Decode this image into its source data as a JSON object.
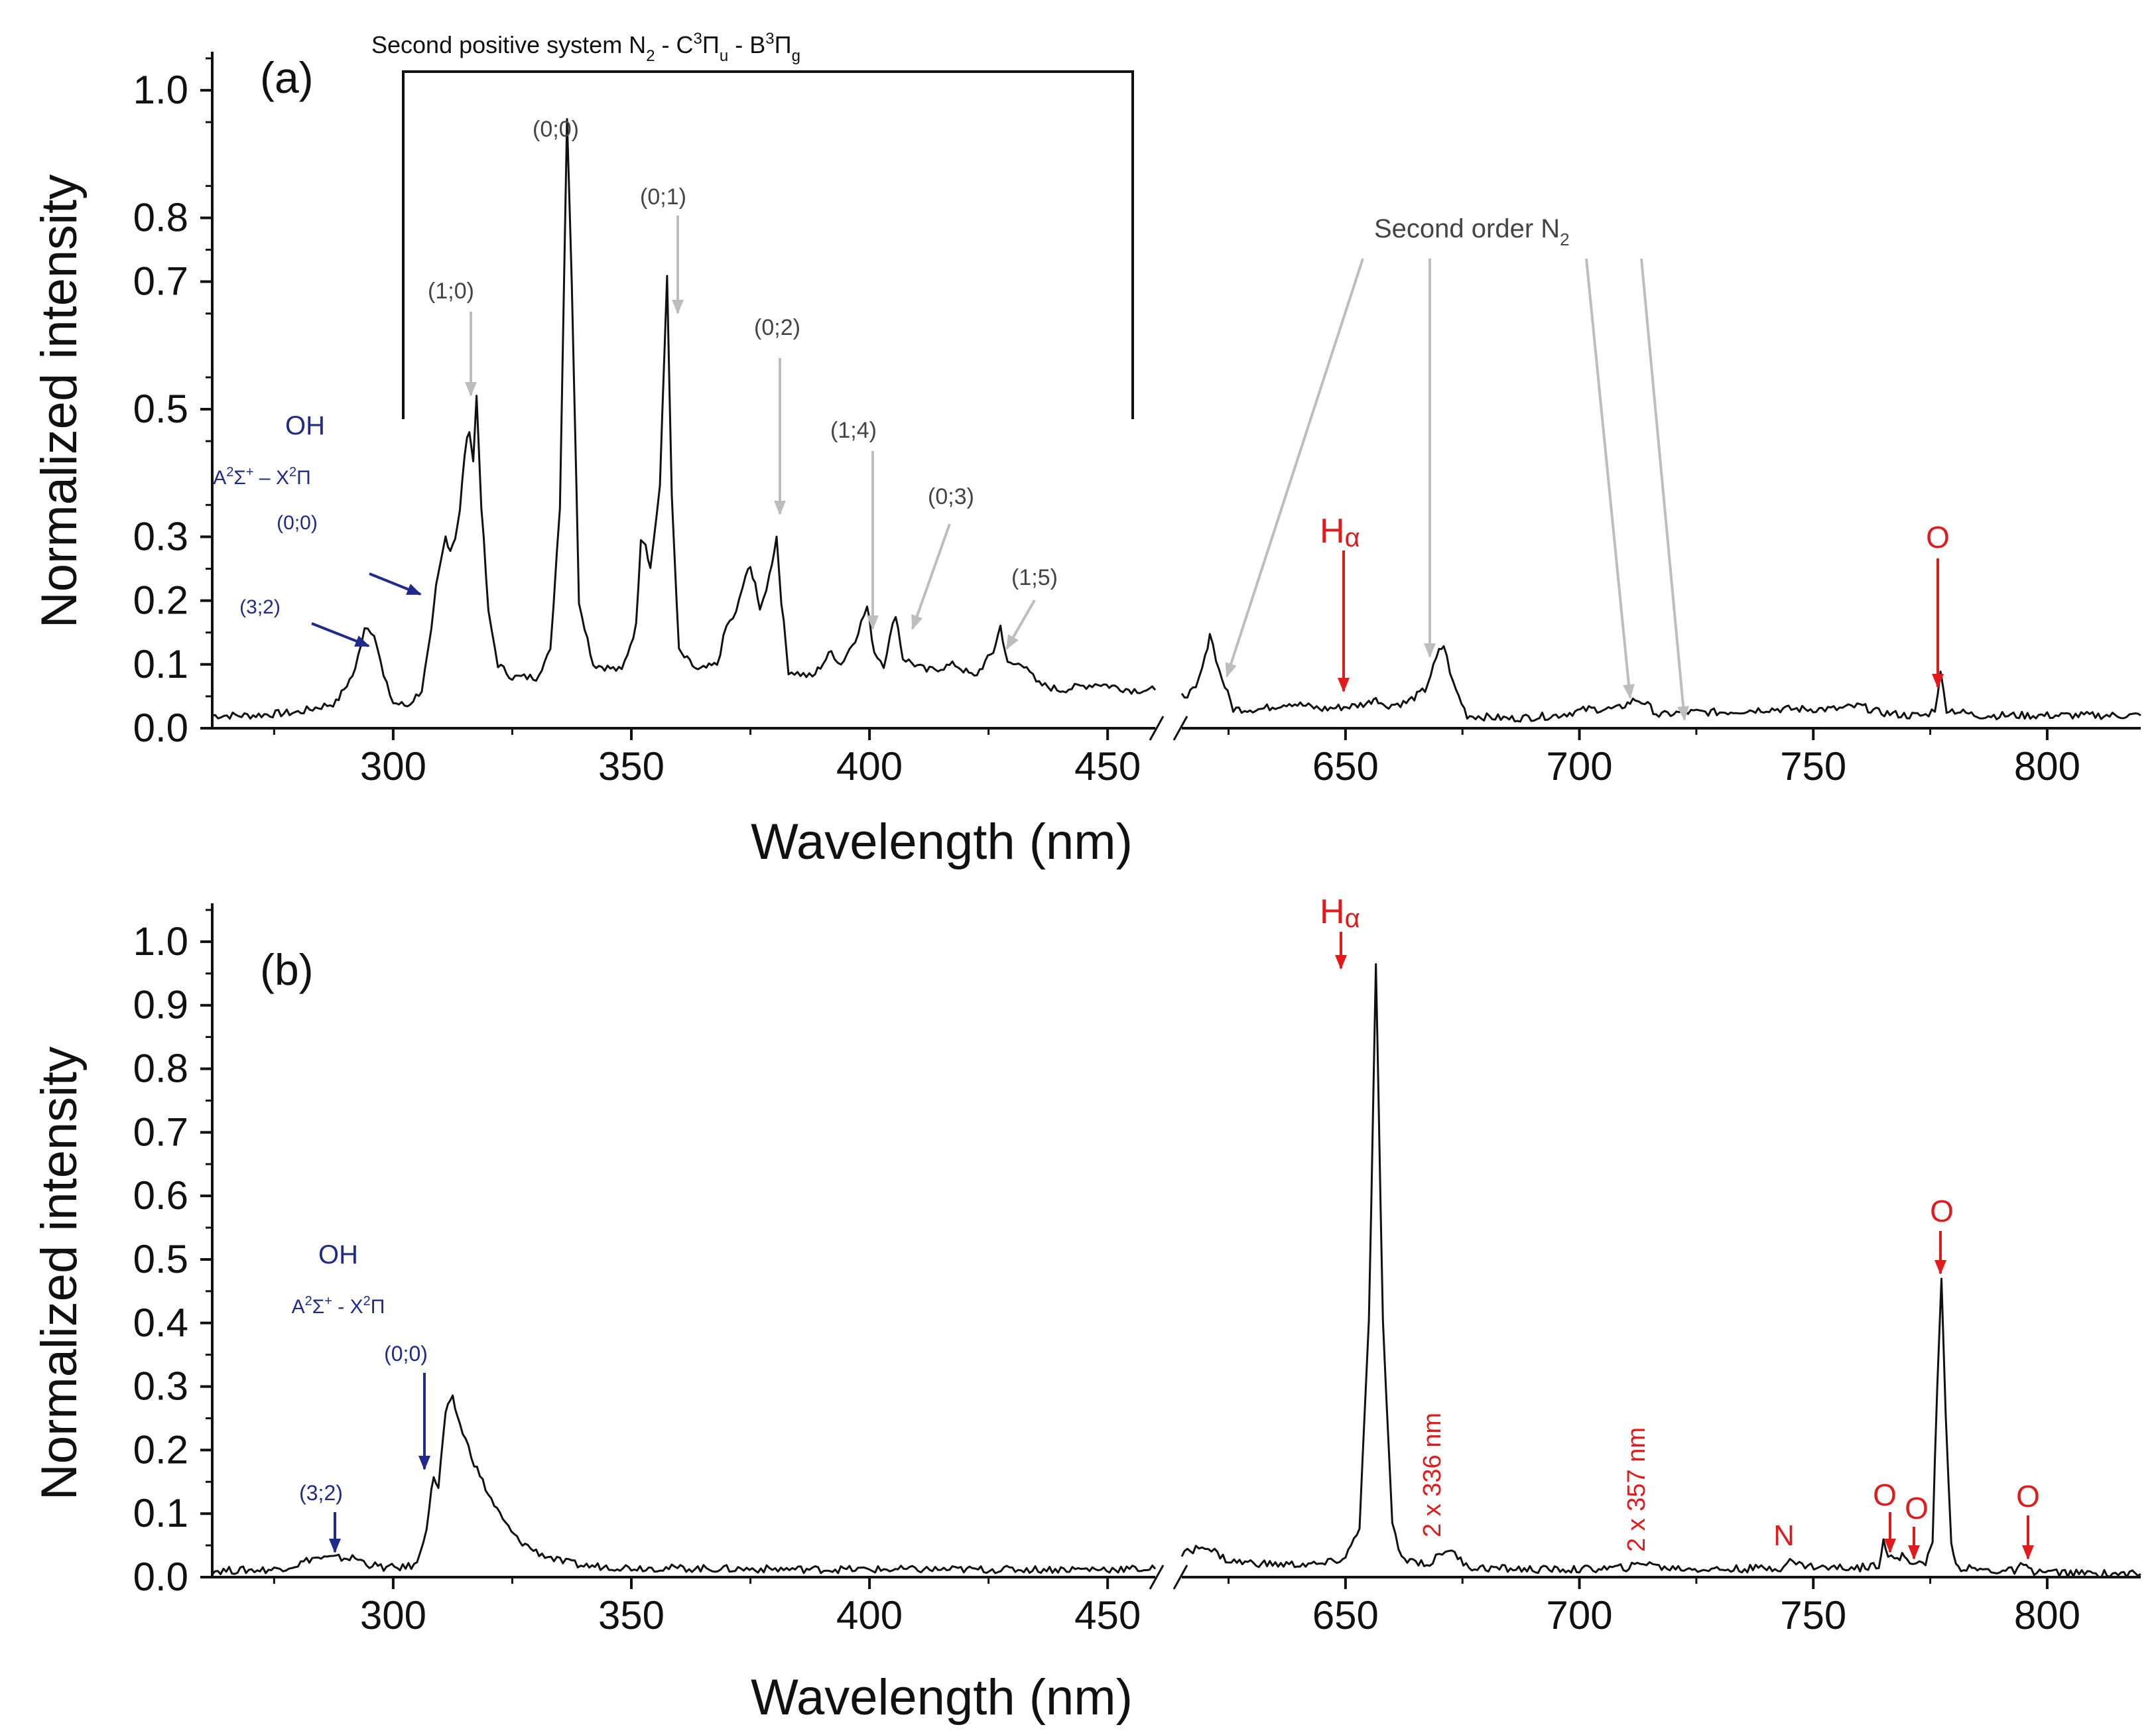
{
  "chart_data": [
    {
      "type": "line",
      "panel_label": "(a)",
      "xlabel": "Wavelength (nm)",
      "ylabel": "Normalized intensity",
      "ylim": [
        0.0,
        1.05
      ],
      "y_ticks": [
        "0.0",
        "0.1",
        "0.2",
        "0.3",
        "0.5",
        "0.7",
        "0.8",
        "1.0"
      ],
      "x_segments": [
        {
          "xlim": [
            262,
            460
          ],
          "ticks": [
            "300",
            "350",
            "400",
            "450"
          ]
        },
        {
          "xlim": [
            615,
            820
          ],
          "ticks": [
            "650",
            "700",
            "750",
            "800"
          ]
        }
      ],
      "x_tick_values": [
        300,
        350,
        400,
        450,
        650,
        700,
        750,
        800
      ],
      "series": [
        {
          "name": "spectrum",
          "points": [
            [
              262,
              0.02
            ],
            [
              270,
              0.02
            ],
            [
              280,
              0.025
            ],
            [
              288,
              0.04
            ],
            [
              292,
              0.09
            ],
            [
              294,
              0.16
            ],
            [
              296,
              0.15
            ],
            [
              298,
              0.08
            ],
            [
              300,
              0.04
            ],
            [
              303,
              0.035
            ],
            [
              306,
              0.06
            ],
            [
              308,
              0.15
            ],
            [
              309,
              0.22
            ],
            [
              311,
              0.3
            ],
            [
              312,
              0.28
            ],
            [
              313,
              0.3
            ],
            [
              314,
              0.34
            ],
            [
              315,
              0.43
            ],
            [
              316,
              0.47
            ],
            [
              316.8,
              0.42
            ],
            [
              317.5,
              0.52
            ],
            [
              318.5,
              0.35
            ],
            [
              320,
              0.18
            ],
            [
              322,
              0.1
            ],
            [
              325,
              0.08
            ],
            [
              330,
              0.08
            ],
            [
              333,
              0.12
            ],
            [
              335,
              0.35
            ],
            [
              336.5,
              0.96
            ],
            [
              337.5,
              0.7
            ],
            [
              339,
              0.2
            ],
            [
              342,
              0.1
            ],
            [
              348,
              0.09
            ],
            [
              351,
              0.16
            ],
            [
              352,
              0.3
            ],
            [
              353,
              0.29
            ],
            [
              354,
              0.25
            ],
            [
              356,
              0.38
            ],
            [
              357.5,
              0.71
            ],
            [
              358.5,
              0.36
            ],
            [
              360,
              0.12
            ],
            [
              364,
              0.09
            ],
            [
              368,
              0.1
            ],
            [
              370,
              0.16
            ],
            [
              372,
              0.18
            ],
            [
              374,
              0.24
            ],
            [
              375,
              0.25
            ],
            [
              376,
              0.23
            ],
            [
              377,
              0.18
            ],
            [
              379,
              0.24
            ],
            [
              380.5,
              0.3
            ],
            [
              381.5,
              0.2
            ],
            [
              383,
              0.09
            ],
            [
              388,
              0.08
            ],
            [
              392,
              0.12
            ],
            [
              394,
              0.1
            ],
            [
              397,
              0.14
            ],
            [
              399.5,
              0.19
            ],
            [
              401,
              0.12
            ],
            [
              403,
              0.1
            ],
            [
              405.5,
              0.18
            ],
            [
              407,
              0.11
            ],
            [
              412,
              0.09
            ],
            [
              418,
              0.1
            ],
            [
              422,
              0.08
            ],
            [
              426,
              0.12
            ],
            [
              427.5,
              0.16
            ],
            [
              429,
              0.1
            ],
            [
              433,
              0.1
            ],
            [
              435,
              0.07
            ],
            [
              440,
              0.06
            ],
            [
              448,
              0.07
            ],
            [
              455,
              0.06
            ],
            [
              460,
              0.06
            ],
            [
              615,
              0.05
            ],
            [
              618,
              0.06
            ],
            [
              620,
              0.11
            ],
            [
              621,
              0.15
            ],
            [
              623,
              0.09
            ],
            [
              626,
              0.03
            ],
            [
              632,
              0.03
            ],
            [
              638,
              0.04
            ],
            [
              645,
              0.03
            ],
            [
              652,
              0.035
            ],
            [
              655,
              0.04
            ],
            [
              656.5,
              0.05
            ],
            [
              658,
              0.035
            ],
            [
              663,
              0.04
            ],
            [
              667,
              0.06
            ],
            [
              670,
              0.12
            ],
            [
              671,
              0.13
            ],
            [
              673,
              0.07
            ],
            [
              676,
              0.02
            ],
            [
              685,
              0.015
            ],
            [
              695,
              0.02
            ],
            [
              702,
              0.03
            ],
            [
              708,
              0.03
            ],
            [
              712,
              0.045
            ],
            [
              714,
              0.04
            ],
            [
              717,
              0.02
            ],
            [
              722,
              0.025
            ],
            [
              730,
              0.025
            ],
            [
              740,
              0.03
            ],
            [
              750,
              0.03
            ],
            [
              755,
              0.03
            ],
            [
              760,
              0.035
            ],
            [
              764,
              0.025
            ],
            [
              770,
              0.02
            ],
            [
              774,
              0.02
            ],
            [
              776,
              0.03
            ],
            [
              777.2,
              0.085
            ],
            [
              778.5,
              0.03
            ],
            [
              785,
              0.02
            ],
            [
              800,
              0.02
            ],
            [
              820,
              0.02
            ]
          ]
        }
      ],
      "annotations": [
        {
          "name": "N2 (1;0)",
          "text": "(1;0)",
          "x": 316,
          "y": 0.505,
          "color": "gray"
        },
        {
          "name": "N2 (0;0)",
          "text": "(0;0)",
          "x": 337,
          "y": 0.96,
          "color": "gray"
        },
        {
          "name": "N2 (0;1)",
          "text": "(0;1)",
          "x": 357.7,
          "y": 0.69,
          "color": "gray"
        },
        {
          "name": "N2 (0;2)",
          "text": "(0;2)",
          "x": 380.5,
          "y": 0.29,
          "color": "gray"
        },
        {
          "name": "N2 (1;4)",
          "text": "(1;4)",
          "x": 399.5,
          "y": 0.18,
          "color": "gray"
        },
        {
          "name": "N2 (0;3)",
          "text": "(0;3)",
          "x": 405.5,
          "y": 0.18,
          "color": "gray"
        },
        {
          "name": "N2 (1;5)",
          "text": "(1;5)",
          "x": 427.5,
          "y": 0.155,
          "color": "gray"
        }
      ],
      "n2_system_label": {
        "prefix": "Second positive system N",
        "sub1": "2",
        "mid1": " - C",
        "sup1": "3",
        "pi1": "Π",
        "sub2": "u",
        "mid2": " - B",
        "sup2": "3",
        "pi2": "Π",
        "sub3": "g"
      },
      "second_order_label": {
        "text": "Second order N",
        "sub": "2"
      },
      "oh_labels": {
        "title": "OH",
        "transition_a": "A",
        "sup_a": "2",
        "sigma": "Σ",
        "sup_plus": "+",
        "mid": " – X",
        "sup_b": "2",
        "pi": "Π",
        "band_00": "(0;0)",
        "band_32": "(3;2)"
      },
      "h_alpha": {
        "main": "H",
        "greek": "α"
      },
      "o_label": "O"
    },
    {
      "type": "line",
      "panel_label": "(b)",
      "xlabel": "Wavelength (nm)",
      "ylabel": "Normalized intensity",
      "ylim": [
        0.0,
        1.05
      ],
      "y_ticks": [
        "0.0",
        "0.1",
        "0.2",
        "0.3",
        "0.4",
        "0.5",
        "0.6",
        "0.7",
        "0.8",
        "0.9",
        "1.0"
      ],
      "x_segments": [
        {
          "xlim": [
            262,
            460
          ],
          "ticks": [
            "300",
            "350",
            "400",
            "450"
          ]
        },
        {
          "xlim": [
            615,
            820
          ],
          "ticks": [
            "650",
            "700",
            "750",
            "800"
          ]
        }
      ],
      "x_tick_values": [
        300,
        350,
        400,
        450,
        650,
        700,
        750,
        800
      ],
      "series": [
        {
          "name": "spectrum",
          "points": [
            [
              262,
              0.01
            ],
            [
              275,
              0.012
            ],
            [
              280,
              0.02
            ],
            [
              283,
              0.03
            ],
            [
              288,
              0.03
            ],
            [
              292,
              0.03
            ],
            [
              295,
              0.02
            ],
            [
              298,
              0.015
            ],
            [
              302,
              0.015
            ],
            [
              305,
              0.02
            ],
            [
              307,
              0.08
            ],
            [
              308.5,
              0.16
            ],
            [
              309.5,
              0.14
            ],
            [
              311,
              0.26
            ],
            [
              312.5,
              0.28
            ],
            [
              314,
              0.24
            ],
            [
              317,
              0.18
            ],
            [
              320,
              0.13
            ],
            [
              323,
              0.09
            ],
            [
              326,
              0.06
            ],
            [
              330,
              0.04
            ],
            [
              335,
              0.025
            ],
            [
              340,
              0.018
            ],
            [
              350,
              0.015
            ],
            [
              370,
              0.013
            ],
            [
              400,
              0.012
            ],
            [
              430,
              0.012
            ],
            [
              460,
              0.013
            ],
            [
              615,
              0.035
            ],
            [
              618,
              0.045
            ],
            [
              620,
              0.05
            ],
            [
              622,
              0.04
            ],
            [
              625,
              0.025
            ],
            [
              635,
              0.02
            ],
            [
              645,
              0.02
            ],
            [
              650,
              0.03
            ],
            [
              653,
              0.08
            ],
            [
              655,
              0.4
            ],
            [
              656.5,
              0.96
            ],
            [
              658,
              0.4
            ],
            [
              660,
              0.08
            ],
            [
              662,
              0.03
            ],
            [
              668,
              0.02
            ],
            [
              670,
              0.035
            ],
            [
              672,
              0.045
            ],
            [
              674,
              0.03
            ],
            [
              677,
              0.015
            ],
            [
              690,
              0.012
            ],
            [
              700,
              0.012
            ],
            [
              710,
              0.015
            ],
            [
              713,
              0.02
            ],
            [
              715,
              0.025
            ],
            [
              717,
              0.015
            ],
            [
              730,
              0.012
            ],
            [
              743,
              0.015
            ],
            [
              745,
              0.025
            ],
            [
              747,
              0.02
            ],
            [
              752,
              0.015
            ],
            [
              760,
              0.015
            ],
            [
              764,
              0.02
            ],
            [
              765,
              0.06
            ],
            [
              766,
              0.035
            ],
            [
              768,
              0.025
            ],
            [
              769,
              0.035
            ],
            [
              770,
              0.03
            ],
            [
              772,
              0.02
            ],
            [
              774,
              0.02
            ],
            [
              775.5,
              0.06
            ],
            [
              776.5,
              0.3
            ],
            [
              777.4,
              0.475
            ],
            [
              778.3,
              0.25
            ],
            [
              779.5,
              0.05
            ],
            [
              781,
              0.015
            ],
            [
              788,
              0.01
            ],
            [
              793,
              0.01
            ],
            [
              795,
              0.02
            ],
            [
              796,
              0.01
            ],
            [
              805,
              0.006
            ],
            [
              820,
              0.005
            ]
          ]
        }
      ],
      "annotations": [
        {
          "name": "OH (3;2)",
          "text": "(3;2)",
          "x": 288,
          "y": 0.035,
          "color": "blue"
        },
        {
          "name": "OH (0;0)",
          "text": "(0;0)",
          "x": 307.5,
          "y": 0.14,
          "color": "blue"
        },
        {
          "name": "H-alpha",
          "x": 656.5,
          "y": 0.97,
          "color": "red"
        },
        {
          "name": "2 x 336 nm",
          "text": "2 x 336 nm",
          "x": 672,
          "y": 0.05,
          "color": "red"
        },
        {
          "name": "2 x 357 nm",
          "text": "2 x 357 nm",
          "x": 715,
          "y": 0.03,
          "color": "red"
        },
        {
          "name": "N",
          "text": "N",
          "x": 745,
          "y": 0.03,
          "color": "red"
        },
        {
          "name": "O 1",
          "text": "O",
          "x": 765,
          "y": 0.065,
          "color": "red"
        },
        {
          "name": "O 2",
          "text": "O",
          "x": 769,
          "y": 0.04,
          "color": "red"
        },
        {
          "name": "O 3",
          "text": "O",
          "x": 777.4,
          "y": 0.475,
          "color": "red"
        },
        {
          "name": "O 4",
          "text": "O",
          "x": 795,
          "y": 0.02,
          "color": "red"
        }
      ],
      "oh_labels": {
        "title": "OH",
        "transition_a": "A",
        "sup_a": "2",
        "sigma": "Σ",
        "sup_plus": "+",
        "mid": " - X",
        "sup_b": "2",
        "pi": "Π",
        "band_00": "(0;0)",
        "band_32": "(3;2)"
      },
      "h_alpha": {
        "main": "H",
        "greek": "α"
      },
      "o_label": "O"
    }
  ],
  "colors": {
    "line": "#111111",
    "gray_annotation": "#bdbdbd",
    "gray_text": "#444444",
    "blue": "#1f2a8c",
    "red": "#e31a1c",
    "axis": "#111111"
  }
}
